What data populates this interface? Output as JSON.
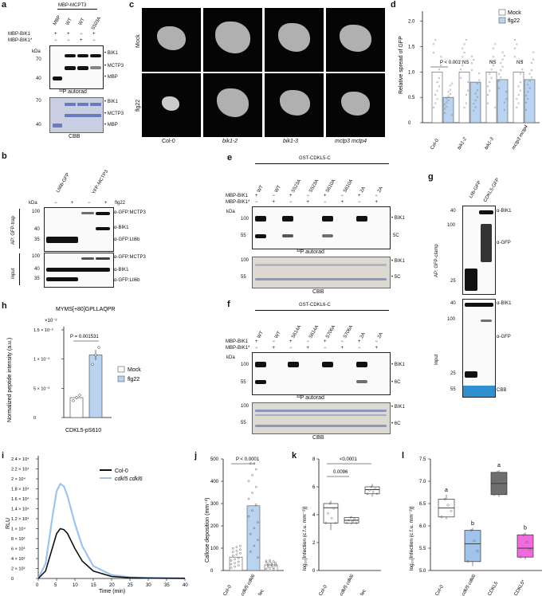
{
  "panel_labels": {
    "a": "a",
    "b": "b",
    "c": "c",
    "d": "d",
    "e": "e",
    "f": "f",
    "g": "g",
    "h": "h",
    "i": "i",
    "j": "j",
    "k": "k",
    "l": "l"
  },
  "a": {
    "header": "MBP-MCPT3",
    "lanes": [
      "MBP",
      "WT",
      "WT",
      "S503A"
    ],
    "row1": "MBP-BIK1",
    "row1_signs": [
      "+",
      "+",
      "−",
      "+"
    ],
    "row2": "MBP-BIK1*",
    "row2_signs": [
      "−",
      "−",
      "+",
      "−"
    ],
    "kda": "kDa",
    "mw_top": [
      "70",
      "40"
    ],
    "mw_bottom": [
      "70",
      "40"
    ],
    "bands": [
      "BIK1",
      "MCTP3",
      "MBP"
    ],
    "autorad": "³²P autorad",
    "cbb": "CBB"
  },
  "b": {
    "lanes": [
      "Lti6b-GFP",
      "YFP-MCTP3"
    ],
    "flg22": "flg22",
    "signs": [
      "−",
      "+",
      "−",
      "+"
    ],
    "kda": "kDa",
    "mw_ap": [
      "100",
      "40",
      "35"
    ],
    "mw_input": [
      "100",
      "40",
      "35"
    ],
    "ap_label": "AP: GFP-trap",
    "input_label": "Input",
    "ab_ap": [
      "α-GFP:MCTP3",
      "α-BIK1",
      "α-GFP:Lti6b"
    ],
    "ab_input": [
      "α-GFP:MCTP3",
      "α-BIK1",
      "α-GFP:Lti6b"
    ]
  },
  "c": {
    "rows": [
      "Mock",
      "flg22"
    ],
    "cols": [
      "Col-0",
      "bik1-2",
      "bik1-3",
      "mctp3 mctp4"
    ]
  },
  "d": {
    "ylabel": "Relative spread of GFP",
    "yticks": [
      "0",
      "0.5",
      "1.0",
      "1.5",
      "2.0"
    ],
    "legend": [
      "Mock",
      "flg22"
    ],
    "pval": "P < 0.001",
    "ns": "NS",
    "groups": [
      "Col-0",
      "bik1-2",
      "bik1-3",
      "mctp3 mctp4"
    ],
    "chart_data": {
      "type": "bar",
      "categories": [
        "Col-0",
        "bik1-2",
        "bik1-3",
        "mctp3 mctp4"
      ],
      "series": [
        {
          "name": "Mock",
          "values": [
            1.0,
            1.0,
            1.0,
            1.0
          ]
        },
        {
          "name": "flg22",
          "values": [
            0.5,
            0.8,
            0.85,
            0.85
          ]
        }
      ],
      "ylabel": "Relative spread of GFP",
      "ylim": [
        0,
        2.2
      ]
    }
  },
  "e": {
    "header": "GST-CDKL5-C",
    "lanes": [
      "WT",
      "WT",
      "S523A",
      "S523A",
      "S610A",
      "S610A",
      "2A",
      "2A"
    ],
    "row1": "MBP-BIK1",
    "row1_signs": [
      "+",
      "−",
      "+",
      "−",
      "+",
      "−",
      "+",
      "−"
    ],
    "row2": "MBP-BIK1*",
    "row2_signs": [
      "−",
      "+",
      "−",
      "+",
      "−",
      "+",
      "−",
      "+"
    ],
    "kda": "kDa",
    "mw_top": [
      "100",
      "55"
    ],
    "mw_bottom": [
      "100",
      "55"
    ],
    "bands_top": [
      "BIK1",
      "5C"
    ],
    "bands_bottom": [
      "BIK1",
      "5C"
    ],
    "autorad": "³²P autorad",
    "cbb": "CBB"
  },
  "f": {
    "header": "GST-CDKL6-C",
    "lanes": [
      "WT",
      "WT",
      "S614A",
      "S614A",
      "S706A",
      "S706A",
      "2A",
      "2A"
    ],
    "row1": "MBP-BIK1",
    "row1_signs": [
      "+",
      "−",
      "+",
      "−",
      "+",
      "−",
      "+",
      "−"
    ],
    "row2": "MBP-BIK1*",
    "row2_signs": [
      "−",
      "+",
      "−",
      "+",
      "−",
      "+",
      "−",
      "+"
    ],
    "kda": "kDa",
    "mw_top": [
      "100",
      "55"
    ],
    "mw_bottom": [
      "100",
      "55"
    ],
    "bands_top": [
      "BIK1",
      "6C"
    ],
    "bands_bottom": [
      "BIK1",
      "6C"
    ],
    "autorad": "³²P autorad",
    "cbb": "CBB"
  },
  "g": {
    "lanes": [
      "Ltib-GFP",
      "CDKL5-GFP"
    ],
    "ap_label": "AP: GFP-clamp",
    "input_label": "Input",
    "mw_ap": [
      "40",
      "100",
      "25"
    ],
    "mw_input": [
      "40",
      "100",
      "25",
      "55"
    ],
    "ab_ap": [
      "α-BIK1",
      "α-GFP"
    ],
    "ab_input": [
      "α-BIK1",
      "α-GFP",
      "CBB"
    ]
  },
  "h": {
    "title": "MYMS[+80]GPLLAQPR",
    "ylabel": "Normalized peptide intensity (a.u.)",
    "exp": "×10⁻³",
    "yticks": [
      "0",
      "5 × 10⁻³",
      "1 × 10⁻²",
      "1.5 × 10⁻²"
    ],
    "pval": "P = 0.001531",
    "xlabel": "CDKL5-pS610",
    "legend": [
      "Mock",
      "flg22"
    ],
    "chart_data": {
      "type": "bar",
      "categories": [
        "CDKL5-pS610"
      ],
      "series": [
        {
          "name": "Mock",
          "values": [
            0.0034
          ]
        },
        {
          "name": "flg22",
          "values": [
            0.0107
          ]
        }
      ],
      "ylabel": "Normalized peptide intensity (a.u.)",
      "ylim": [
        0,
        0.015
      ]
    }
  },
  "i": {
    "ylabel": "RLU",
    "xlabel": "Time (min)",
    "legend": [
      "Col-0",
      "cdkl5 cdkl6"
    ],
    "yticks": [
      "0",
      "2 × 10³",
      "4 × 10³",
      "6 × 10³",
      "8 × 10³",
      "1 × 10⁴",
      "1.2 × 10⁴",
      "1.4 × 10⁴",
      "1.6 × 10⁴",
      "1.8 × 10⁴",
      "2 × 10⁴",
      "2.2 × 10⁴",
      "2.4 × 10⁴"
    ],
    "xticks": [
      "0",
      "5",
      "10",
      "15",
      "20",
      "25",
      "30",
      "35",
      "40"
    ],
    "chart_data": {
      "type": "line",
      "x": [
        0,
        2,
        4,
        5,
        6,
        7,
        8,
        10,
        12,
        15,
        20,
        25,
        30,
        35,
        40
      ],
      "series": [
        {
          "name": "Col-0",
          "values": [
            0,
            1500,
            6500,
            9000,
            10000,
            9800,
            9000,
            6000,
            3500,
            1500,
            400,
            150,
            80,
            50,
            30
          ]
        },
        {
          "name": "cdkl5 cdkl6",
          "values": [
            0,
            3000,
            13000,
            17500,
            19000,
            18500,
            16500,
            11000,
            6500,
            2500,
            700,
            250,
            120,
            70,
            50
          ]
        }
      ],
      "xlabel": "Time (min)",
      "ylabel": "RLU",
      "xlim": [
        0,
        40
      ],
      "ylim": [
        0,
        24000
      ]
    }
  },
  "j": {
    "ylabel": "Callose deposition (mm⁻²)",
    "pval": "P < 0.0001",
    "yticks": [
      "0",
      "100",
      "200",
      "300",
      "400",
      "500"
    ],
    "groups": [
      "Col-0",
      "cdkl5 cdkl6",
      "fec"
    ],
    "chart_data": {
      "type": "bar",
      "categories": [
        "Col-0",
        "cdkl5 cdkl6",
        "fec"
      ],
      "values": [
        60,
        290,
        25
      ],
      "ylabel": "Callose deposition (mm⁻²)",
      "ylim": [
        0,
        500
      ]
    }
  },
  "k": {
    "ylabel": "log₁₀[Infection (c.f.u. mm⁻²)]",
    "pvals": [
      "<0.0001",
      "0.0096"
    ],
    "yticks": [
      "0",
      "2",
      "4",
      "6",
      "8"
    ],
    "groups": [
      "Col-0",
      "cdkl5 cdkl6",
      "fec"
    ],
    "chart_data": {
      "type": "box",
      "categories": [
        "Col-0",
        "cdkl5 cdkl6",
        "fec"
      ],
      "medians": [
        4.5,
        3.6,
        5.8
      ],
      "ylabel": "log₁₀[Infection (c.f.u. mm⁻²)]",
      "ylim": [
        0,
        8
      ]
    }
  },
  "l": {
    "ylabel": "log₁₀[Infection (c.f.u. mm⁻²)]",
    "letters": [
      "a",
      "b",
      "a",
      "b"
    ],
    "yticks": [
      "5.0",
      "5.5",
      "6.0",
      "6.5",
      "7.0",
      "7.5"
    ],
    "groups": [
      "Col-0",
      "cdkl5 cdkl6",
      "CDKL5",
      "CDKL5*"
    ],
    "colors": [
      "#ffffff",
      "#9fc3ea",
      "#6e6e6e",
      "#f06bdc"
    ],
    "chart_data": {
      "type": "box",
      "categories": [
        "Col-0",
        "cdkl5 cdkl6",
        "CDKL5",
        "CDKL5*"
      ],
      "medians": [
        6.4,
        5.6,
        6.95,
        5.5
      ],
      "ylabel": "log₁₀[Infection (c.f.u. mm⁻²)]",
      "ylim": [
        5.0,
        7.5
      ]
    }
  }
}
